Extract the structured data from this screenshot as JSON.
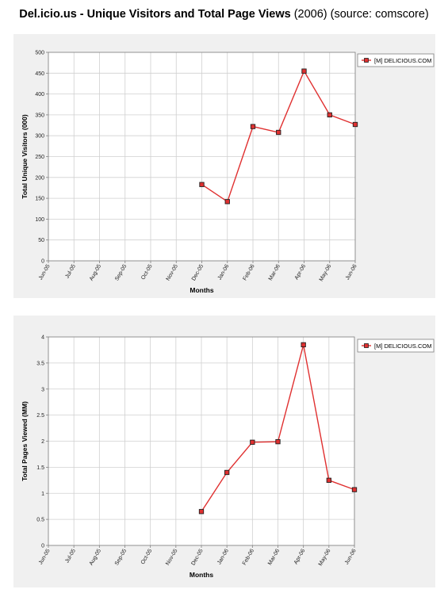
{
  "page": {
    "title_bold": "Del.icio.us - Unique Visitors and Total Page Views",
    "title_rest": " (2006) (source: comscore)"
  },
  "chart_data": [
    {
      "type": "line",
      "xlabel": "Months",
      "ylabel": "Total Unique Visitors (000)",
      "categories": [
        "Jun-05",
        "Jul-05",
        "Aug-05",
        "Sep-05",
        "Oct-05",
        "Nov-05",
        "Dec-05",
        "Jan-06",
        "Feb-06",
        "Mar-06",
        "Apr-06",
        "May-06",
        "Jun-06"
      ],
      "ylim": [
        0,
        500
      ],
      "yticks": [
        "0",
        "50",
        "100",
        "150",
        "200",
        "250",
        "300",
        "350",
        "400",
        "450",
        "500"
      ],
      "grid": true,
      "legend_position": "top-right",
      "series": [
        {
          "name": "[M] DELICIOUS.COM",
          "color": "#e03030",
          "values": [
            null,
            null,
            null,
            null,
            null,
            null,
            183,
            142,
            322,
            308,
            455,
            350,
            327
          ]
        }
      ]
    },
    {
      "type": "line",
      "xlabel": "Months",
      "ylabel": "Total Pages Viewed (MM)",
      "categories": [
        "Jun-05",
        "Jul-05",
        "Aug-05",
        "Sep-05",
        "Oct-05",
        "Nov-05",
        "Dec-05",
        "Jan-06",
        "Feb-06",
        "Mar-06",
        "Apr-06",
        "May-06",
        "Jun-06"
      ],
      "ylim": [
        0,
        4
      ],
      "yticks": [
        "0",
        "0.5",
        "1",
        "1.5",
        "2",
        "2.5",
        "3",
        "3.5",
        "4"
      ],
      "grid": true,
      "legend_position": "top-right",
      "series": [
        {
          "name": "[M] DELICIOUS.COM",
          "color": "#e03030",
          "values": [
            null,
            null,
            null,
            null,
            null,
            null,
            0.65,
            1.4,
            1.98,
            1.99,
            3.85,
            1.25,
            1.07
          ]
        }
      ]
    }
  ]
}
